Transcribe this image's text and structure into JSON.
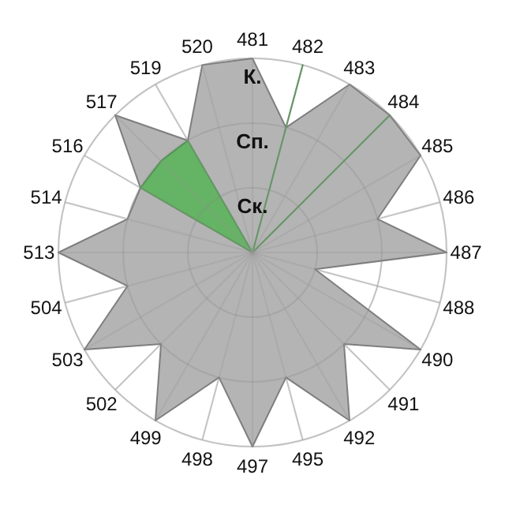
{
  "chart_data": {
    "type": "radar",
    "categories": [
      "481",
      "482",
      "483",
      "484",
      "485",
      "486",
      "487",
      "488",
      "490",
      "491",
      "492",
      "495",
      "497",
      "498",
      "499",
      "502",
      "503",
      "504",
      "513",
      "514",
      "516",
      "517",
      "519",
      "520"
    ],
    "ylim": [
      0,
      3
    ],
    "yticks": [
      {
        "value": 1,
        "label": "Ск."
      },
      {
        "value": 2,
        "label": "Сп."
      },
      {
        "value": 3,
        "label": "К."
      }
    ],
    "grid": true,
    "series": [
      {
        "color": "#b4b4b4",
        "values": [
          3,
          2,
          3,
          3,
          3,
          2,
          3,
          1,
          3,
          2,
          3,
          2,
          3,
          2,
          3,
          2,
          3,
          2,
          3,
          2,
          2,
          3,
          2,
          3
        ]
      },
      {
        "color": "#5cb25c",
        "values": [
          0,
          3,
          0,
          3,
          0,
          0,
          0,
          0,
          0,
          0,
          0,
          0,
          0,
          0,
          0,
          0,
          0,
          0,
          0,
          0,
          2,
          2,
          2,
          0
        ]
      }
    ]
  }
}
